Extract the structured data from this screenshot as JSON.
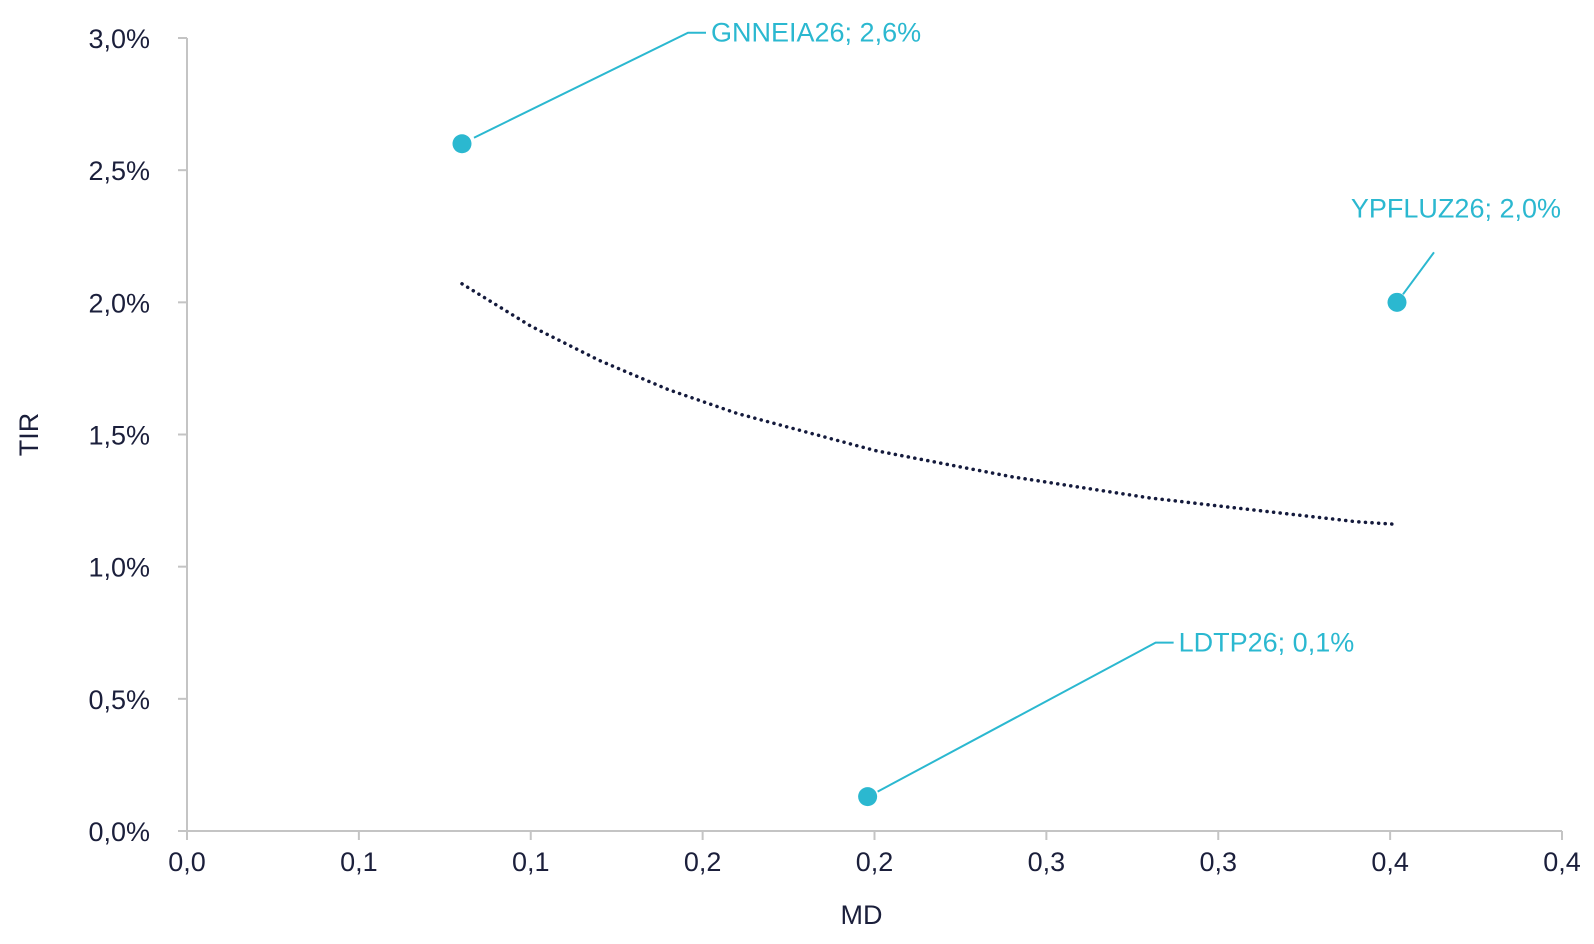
{
  "colors": {
    "point": "#2bb8d0",
    "trend": "#141a3c",
    "axis": "#c4c4c4",
    "text": "#1b1f3b"
  },
  "chart_data": {
    "type": "scatter",
    "title": "",
    "xlabel": "MD",
    "ylabel": "TIR",
    "xlim": [
      0,
      0.4
    ],
    "ylim": [
      0,
      3.0
    ],
    "x_tick_values": [
      0,
      0.05,
      0.1,
      0.15,
      0.2,
      0.25,
      0.3,
      0.35,
      0.4
    ],
    "x_tick_labels": [
      "0,0",
      "0,1",
      "0,1",
      "0,2",
      "0,2",
      "0,3",
      "0,3",
      "0,4",
      "0,4"
    ],
    "y_tick_values": [
      0,
      0.5,
      1.0,
      1.5,
      2.0,
      2.5,
      3.0
    ],
    "y_tick_labels": [
      "0,0%",
      "0,5%",
      "1,0%",
      "1,5%",
      "2,0%",
      "2,5%",
      "3,0%"
    ],
    "grid": false,
    "points": [
      {
        "name": "GNNEIA26",
        "x": 0.08,
        "y": 2.6,
        "label": "GNNEIA26; 2,6%"
      },
      {
        "name": "LDTP26",
        "x": 0.198,
        "y": 0.13,
        "label": "LDTP26; 0,1%"
      },
      {
        "name": "YPFLUZ26",
        "x": 0.352,
        "y": 2.0,
        "label": "YPFLUZ26; 2,0%"
      }
    ],
    "trendline": {
      "type": "logarithmic",
      "style": "dotted",
      "points": [
        {
          "x": 0.08,
          "y": 2.07
        },
        {
          "x": 0.1,
          "y": 1.91
        },
        {
          "x": 0.12,
          "y": 1.78
        },
        {
          "x": 0.14,
          "y": 1.67
        },
        {
          "x": 0.16,
          "y": 1.58
        },
        {
          "x": 0.18,
          "y": 1.51
        },
        {
          "x": 0.2,
          "y": 1.44
        },
        {
          "x": 0.22,
          "y": 1.39
        },
        {
          "x": 0.24,
          "y": 1.34
        },
        {
          "x": 0.26,
          "y": 1.3
        },
        {
          "x": 0.28,
          "y": 1.26
        },
        {
          "x": 0.3,
          "y": 1.23
        },
        {
          "x": 0.32,
          "y": 1.2
        },
        {
          "x": 0.34,
          "y": 1.17
        },
        {
          "x": 0.352,
          "y": 1.16
        }
      ]
    }
  }
}
